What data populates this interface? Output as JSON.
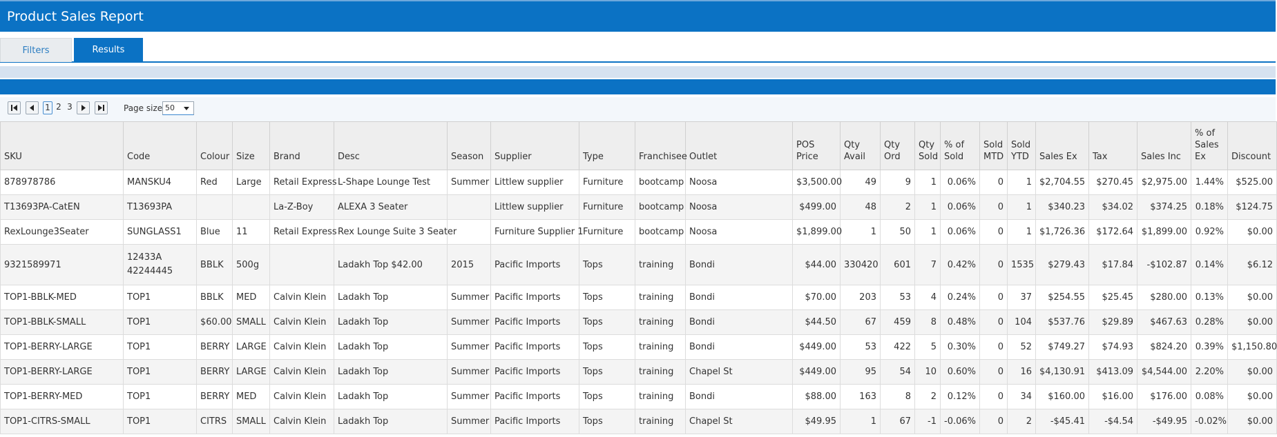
{
  "app": {
    "title": "Product Sales Report"
  },
  "tabs": {
    "filters": "Filters",
    "results": "Results"
  },
  "pager": {
    "pages": [
      "1",
      "2",
      "3"
    ],
    "current": "1",
    "page_size_label": "Page size:",
    "page_size_value": "50"
  },
  "table": {
    "columns": [
      "SKU",
      "Code",
      "Colour",
      "Size",
      "Brand",
      "Desc",
      "Season",
      "Supplier",
      "Type",
      "Franchisee",
      "Outlet",
      "POS Price",
      "Qty Avail",
      "Qty Ord",
      "Qty Sold",
      "% of Sold",
      "Sold MTD",
      "Sold YTD",
      "Sales Ex",
      "Tax",
      "Sales Inc",
      "% of Sales Ex",
      "Discount"
    ],
    "rows": [
      [
        "878978786",
        "MANSKU4",
        "Red",
        "Large",
        "Retail Express",
        "L-Shape Lounge Test",
        "Summer",
        "Littlew supplier",
        "Furniture",
        "bootcamp",
        "Noosa",
        "$3,500.00",
        "49",
        "9",
        "1",
        "0.06%",
        "0",
        "1",
        "$2,704.55",
        "$270.45",
        "$2,975.00",
        "1.44%",
        "$525.00"
      ],
      [
        "T13693PA-CatEN",
        "T13693PA",
        "",
        "",
        "La-Z-Boy",
        "ALEXA 3 Seater",
        "",
        "Littlew supplier",
        "Furniture",
        "bootcamp",
        "Noosa",
        "$499.00",
        "48",
        "2",
        "1",
        "0.06%",
        "0",
        "1",
        "$340.23",
        "$34.02",
        "$374.25",
        "0.18%",
        "$124.75"
      ],
      [
        "RexLounge3Seater",
        "SUNGLASS1",
        "Blue",
        "11",
        "Retail Express",
        "Rex Lounge Suite 3 Seater",
        "",
        "Furniture Supplier 1",
        "Furniture",
        "bootcamp",
        "Noosa",
        "$1,899.00",
        "1",
        "50",
        "1",
        "0.06%",
        "0",
        "1",
        "$1,726.36",
        "$172.64",
        "$1,899.00",
        "0.92%",
        "$0.00"
      ],
      [
        "9321589971",
        "12433A 42244445",
        "BBLK",
        "500g",
        "",
        "Ladakh Top $42.00",
        "2015",
        "Pacific Imports",
        "Tops",
        "training",
        "Bondi",
        "$44.00",
        "330420",
        "601",
        "7",
        "0.42%",
        "0",
        "1535",
        "$279.43",
        "$17.84",
        "-$102.87",
        "0.14%",
        "$6.12"
      ],
      [
        "TOP1-BBLK-MED",
        "TOP1",
        "BBLK",
        "MED",
        "Calvin Klein",
        "Ladakh Top",
        "Summer",
        "Pacific Imports",
        "Tops",
        "training",
        "Bondi",
        "$70.00",
        "203",
        "53",
        "4",
        "0.24%",
        "0",
        "37",
        "$254.55",
        "$25.45",
        "$280.00",
        "0.13%",
        "$0.00"
      ],
      [
        "TOP1-BBLK-SMALL",
        "TOP1",
        "$60.00",
        "SMALL",
        "Calvin Klein",
        "Ladakh Top",
        "Summer",
        "Pacific Imports",
        "Tops",
        "training",
        "Bondi",
        "$44.50",
        "67",
        "459",
        "8",
        "0.48%",
        "0",
        "104",
        "$537.76",
        "$29.89",
        "$467.63",
        "0.28%",
        "$0.00"
      ],
      [
        "TOP1-BERRY-LARGE",
        "TOP1",
        "BERRY",
        "LARGE",
        "Calvin Klein",
        "Ladakh Top",
        "Summer",
        "Pacific Imports",
        "Tops",
        "training",
        "Bondi",
        "$449.00",
        "53",
        "422",
        "5",
        "0.30%",
        "0",
        "52",
        "$749.27",
        "$74.93",
        "$824.20",
        "0.39%",
        "$1,150.80"
      ],
      [
        "TOP1-BERRY-LARGE",
        "TOP1",
        "BERRY",
        "LARGE",
        "Calvin Klein",
        "Ladakh Top",
        "Summer",
        "Pacific Imports",
        "Tops",
        "training",
        "Chapel St",
        "$449.00",
        "95",
        "54",
        "10",
        "0.60%",
        "0",
        "16",
        "$4,130.91",
        "$413.09",
        "$4,544.00",
        "2.20%",
        "$0.00"
      ],
      [
        "TOP1-BERRY-MED",
        "TOP1",
        "BERRY",
        "MED",
        "Calvin Klein",
        "Ladakh Top",
        "Summer",
        "Pacific Imports",
        "Tops",
        "training",
        "Bondi",
        "$88.00",
        "163",
        "8",
        "2",
        "0.12%",
        "0",
        "34",
        "$160.00",
        "$16.00",
        "$176.00",
        "0.08%",
        "$0.00"
      ],
      [
        "TOP1-CITRS-SMALL",
        "TOP1",
        "CITRS",
        "SMALL",
        "Calvin Klein",
        "Ladakh Top",
        "Summer",
        "Pacific Imports",
        "Tops",
        "training",
        "Chapel St",
        "$49.95",
        "1",
        "67",
        "-1",
        "-0.06%",
        "0",
        "2",
        "-$45.41",
        "-$4.54",
        "-$49.95",
        "-0.02%",
        "$0.00"
      ]
    ]
  }
}
